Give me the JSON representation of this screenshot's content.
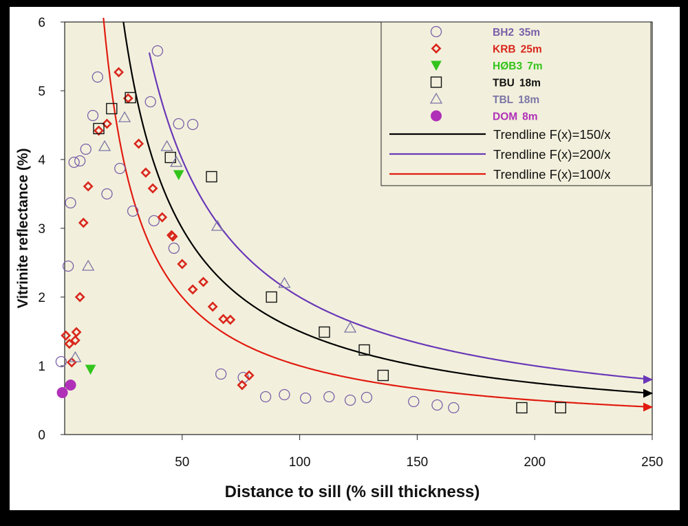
{
  "colors": {
    "frame": "#000000",
    "paper": "#ffffff",
    "plot_bg": "#f2f0dc",
    "bh2": "#7a5fa8",
    "krb": "#d9261c",
    "hob3": "#33c41c",
    "tbu": "#111111",
    "tbl": "#7d75a6",
    "dom": "#b030b8",
    "trend150": "#000000",
    "trend200": "#6a38b8",
    "trend100": "#e11b10"
  },
  "chart_data": {
    "type": "scatter",
    "xlabel": "Distance to sill (% sill thickness)",
    "ylabel": "Vitrinite reflectance (%)",
    "xlim": [
      0,
      250
    ],
    "ylim": [
      0,
      6
    ],
    "x_ticks": [
      {
        "value": 50,
        "label": "50"
      },
      {
        "value": 100,
        "label": "100"
      },
      {
        "value": 150,
        "label": "150"
      },
      {
        "value": 200,
        "label": "200"
      },
      {
        "value": 250,
        "label": "250"
      }
    ],
    "y_ticks": [
      {
        "value": 0,
        "label": "0"
      },
      {
        "value": 1,
        "label": "1"
      },
      {
        "value": 2,
        "label": "2"
      },
      {
        "value": 3,
        "label": "3"
      },
      {
        "value": 4,
        "label": "4"
      },
      {
        "value": 5,
        "label": "5"
      },
      {
        "value": 6,
        "label": "6"
      }
    ],
    "grid": false,
    "legend_position": "top-right",
    "series": [
      {
        "name": "BH2",
        "label": "35m",
        "marker": "circle",
        "color": "#7a5fa8",
        "points": [
          [
            -1.5,
            1.06
          ],
          [
            1.5,
            2.45
          ],
          [
            2.5,
            3.37
          ],
          [
            4,
            3.96
          ],
          [
            6.5,
            3.98
          ],
          [
            9,
            4.15
          ],
          [
            12,
            4.64
          ],
          [
            14,
            5.2
          ],
          [
            18,
            3.5
          ],
          [
            23.5,
            3.87
          ],
          [
            29,
            3.25
          ],
          [
            36.5,
            4.84
          ],
          [
            38,
            3.11
          ],
          [
            39.5,
            5.58
          ],
          [
            46.5,
            2.71
          ],
          [
            48.5,
            4.52
          ],
          [
            54.5,
            4.51
          ],
          [
            66.5,
            0.88
          ],
          [
            76,
            0.83
          ],
          [
            85.5,
            0.55
          ],
          [
            93.5,
            0.58
          ],
          [
            102.5,
            0.53
          ],
          [
            112.5,
            0.55
          ],
          [
            121.5,
            0.5
          ],
          [
            128.5,
            0.54
          ],
          [
            148.5,
            0.48
          ],
          [
            158.5,
            0.43
          ],
          [
            165.5,
            0.39
          ]
        ]
      },
      {
        "name": "KRB",
        "label": "25m",
        "marker": "diamond",
        "color": "#d9261c",
        "points": [
          [
            0.5,
            1.44
          ],
          [
            2,
            1.32
          ],
          [
            3,
            1.05
          ],
          [
            4.5,
            1.37
          ],
          [
            5,
            1.49
          ],
          [
            6.5,
            2.0
          ],
          [
            8,
            3.08
          ],
          [
            10,
            3.61
          ],
          [
            14.5,
            4.42
          ],
          [
            18,
            4.52
          ],
          [
            23,
            5.27
          ],
          [
            27,
            4.89
          ],
          [
            31.5,
            4.23
          ],
          [
            34.5,
            3.81
          ],
          [
            37.5,
            3.58
          ],
          [
            41.5,
            3.16
          ],
          [
            45.5,
            2.9
          ],
          [
            46,
            2.88
          ],
          [
            50,
            2.48
          ],
          [
            54.5,
            2.11
          ],
          [
            59,
            2.22
          ],
          [
            63,
            1.86
          ],
          [
            67.5,
            1.68
          ],
          [
            70.5,
            1.67
          ],
          [
            75.5,
            0.72
          ],
          [
            78.5,
            0.86
          ]
        ]
      },
      {
        "name": "HØB3",
        "label": "7m",
        "marker": "triangle-down",
        "color": "#33c41c",
        "points": [
          [
            11,
            0.95
          ],
          [
            48.5,
            3.78
          ]
        ]
      },
      {
        "name": "TBU",
        "label": "18m",
        "marker": "square",
        "color": "#111111",
        "points": [
          [
            14.5,
            4.45
          ],
          [
            20,
            4.74
          ],
          [
            28,
            4.9
          ],
          [
            45,
            4.03
          ],
          [
            62.5,
            3.75
          ],
          [
            88,
            2.0
          ],
          [
            110.5,
            1.49
          ],
          [
            127.5,
            1.23
          ],
          [
            135.5,
            0.86
          ],
          [
            194.5,
            0.39
          ],
          [
            211,
            0.39
          ]
        ]
      },
      {
        "name": "TBL",
        "label": "18m",
        "marker": "triangle-up",
        "color": "#7d75a6",
        "points": [
          [
            4.5,
            1.12
          ],
          [
            10,
            2.45
          ],
          [
            17,
            4.19
          ],
          [
            25.5,
            4.61
          ],
          [
            43.5,
            4.19
          ],
          [
            47.5,
            3.96
          ],
          [
            65,
            3.03
          ],
          [
            93.5,
            2.2
          ],
          [
            121.5,
            1.55
          ]
        ]
      },
      {
        "name": "DOM",
        "label": "8m",
        "marker": "filled-circle",
        "color": "#b030b8",
        "points": [
          [
            -1,
            0.61
          ],
          [
            2.5,
            0.72
          ]
        ]
      }
    ],
    "trendlines": [
      {
        "name": "Trendline F(x)=150/x",
        "k": 150,
        "x_start": 25,
        "x_end": 250,
        "color": "#000000"
      },
      {
        "name": "Trendline F(x)=200/x",
        "k": 200,
        "x_start": 36,
        "x_end": 250,
        "color": "#6a38b8"
      },
      {
        "name": "Trendline F(x)=100/x",
        "k": 100,
        "x_start": 16.5,
        "x_end": 250,
        "color": "#e11b10"
      }
    ]
  }
}
